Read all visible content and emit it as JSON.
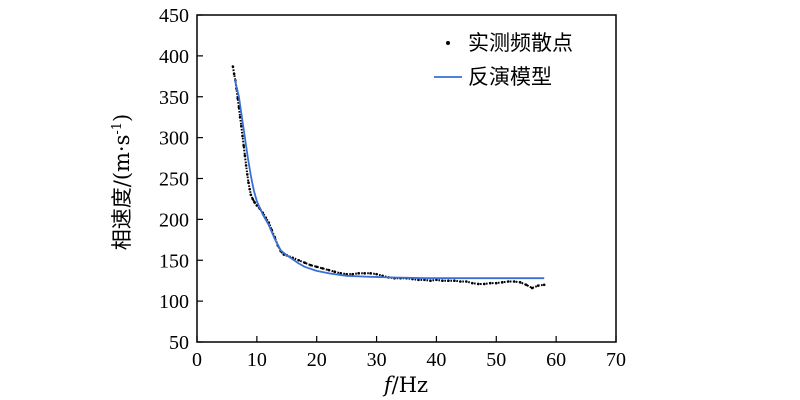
{
  "chart_data": {
    "type": "line",
    "xlabel_italic": "f",
    "xlabel_rest": "/Hz",
    "ylabel_main": "相速度/(m·s",
    "ylabel_sup": "-1",
    "ylabel_close": ")",
    "xlim": [
      0,
      70
    ],
    "ylim": [
      50,
      450
    ],
    "xticks": [
      0,
      10,
      20,
      30,
      40,
      50,
      60,
      70
    ],
    "yticks": [
      50,
      100,
      150,
      200,
      250,
      300,
      350,
      400,
      450
    ],
    "grid": false,
    "legend_position": "top-right",
    "series": [
      {
        "name": "实测频散点",
        "style": "dots",
        "color": "#000000",
        "points": [
          [
            6.0,
            387
          ],
          [
            6.2,
            378
          ],
          [
            6.4,
            370
          ],
          [
            6.6,
            360
          ],
          [
            6.8,
            348
          ],
          [
            7.0,
            337
          ],
          [
            7.2,
            325
          ],
          [
            7.4,
            314
          ],
          [
            7.6,
            302
          ],
          [
            7.8,
            290
          ],
          [
            8.0,
            278
          ],
          [
            8.2,
            266
          ],
          [
            8.4,
            255
          ],
          [
            8.6,
            245
          ],
          [
            8.8,
            237
          ],
          [
            9.0,
            230
          ],
          [
            9.3,
            225
          ],
          [
            9.6,
            221
          ],
          [
            10.0,
            217
          ],
          [
            10.5,
            213
          ],
          [
            11.0,
            208
          ],
          [
            11.5,
            202
          ],
          [
            12.0,
            196
          ],
          [
            12.5,
            187
          ],
          [
            13.0,
            178
          ],
          [
            13.5,
            168
          ],
          [
            14.0,
            161
          ],
          [
            14.5,
            157
          ],
          [
            15.0,
            156
          ],
          [
            16.0,
            153
          ],
          [
            17.0,
            150
          ],
          [
            18.0,
            147
          ],
          [
            19.0,
            144
          ],
          [
            20.0,
            142
          ],
          [
            21.0,
            140
          ],
          [
            22.0,
            138
          ],
          [
            23.0,
            136
          ],
          [
            24.0,
            134
          ],
          [
            25.0,
            133
          ],
          [
            26.0,
            133
          ],
          [
            27.0,
            134
          ],
          [
            28.0,
            134
          ],
          [
            29.0,
            134
          ],
          [
            30.0,
            133
          ],
          [
            31.0,
            131
          ],
          [
            32.0,
            129
          ],
          [
            33.0,
            128
          ],
          [
            34.0,
            128
          ],
          [
            35.0,
            128
          ],
          [
            36.0,
            127
          ],
          [
            37.0,
            126
          ],
          [
            38.0,
            126
          ],
          [
            39.0,
            125
          ],
          [
            40.0,
            126
          ],
          [
            41.0,
            125
          ],
          [
            42.0,
            125
          ],
          [
            43.0,
            125
          ],
          [
            44.0,
            124
          ],
          [
            45.0,
            124
          ],
          [
            46.0,
            122
          ],
          [
            47.0,
            121
          ],
          [
            48.0,
            121
          ],
          [
            49.0,
            122
          ],
          [
            50.0,
            122
          ],
          [
            51.0,
            123
          ],
          [
            52.0,
            124
          ],
          [
            53.0,
            124
          ],
          [
            54.0,
            123
          ],
          [
            55.0,
            120
          ],
          [
            56.0,
            116
          ],
          [
            57.0,
            119
          ],
          [
            58.0,
            120
          ]
        ]
      },
      {
        "name": "反演模型",
        "style": "line",
        "color": "#3a6fd8",
        "points": [
          [
            6.3,
            372
          ],
          [
            7.0,
            350
          ],
          [
            7.5,
            325
          ],
          [
            8.0,
            300
          ],
          [
            8.5,
            275
          ],
          [
            9.0,
            253
          ],
          [
            9.5,
            235
          ],
          [
            10.0,
            222
          ],
          [
            11.0,
            206
          ],
          [
            12.0,
            193
          ],
          [
            13.0,
            176
          ],
          [
            14.0,
            162
          ],
          [
            15.0,
            156
          ],
          [
            16.0,
            151
          ],
          [
            17.0,
            146
          ],
          [
            18.0,
            142
          ],
          [
            20.0,
            137
          ],
          [
            22.0,
            134
          ],
          [
            25.0,
            131
          ],
          [
            28.0,
            130
          ],
          [
            32.0,
            129
          ],
          [
            38.0,
            128
          ],
          [
            45.0,
            128
          ],
          [
            50.0,
            128
          ],
          [
            58.0,
            128
          ]
        ]
      }
    ]
  }
}
